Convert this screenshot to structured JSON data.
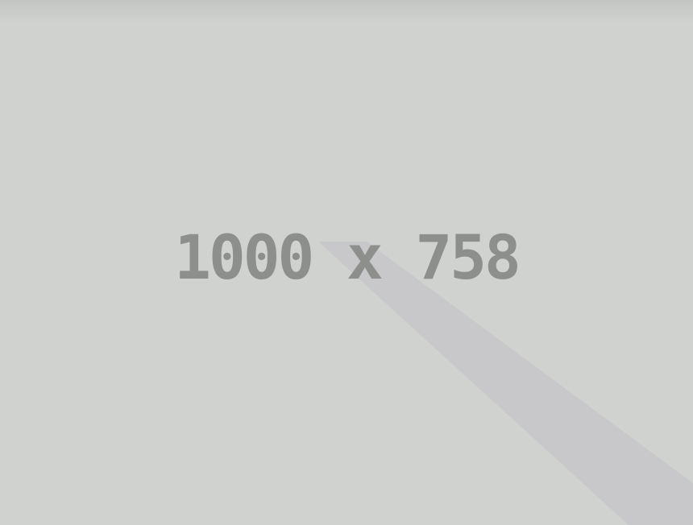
{
  "placeholder": {
    "label": "1000 x 758",
    "colors": {
      "background": "#d0d2cf",
      "band": "#c8c7c9",
      "text": "#8c8f8c"
    }
  }
}
